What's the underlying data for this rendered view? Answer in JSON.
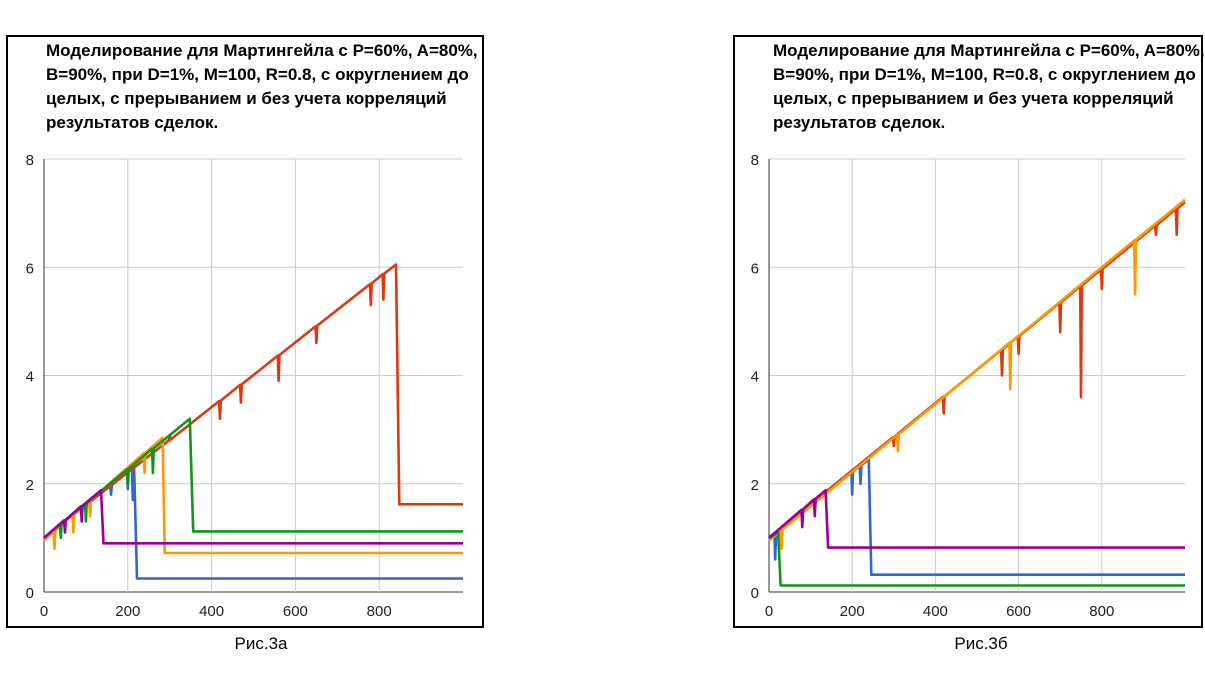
{
  "chart_data": [
    {
      "type": "line",
      "title": "Моделирование для Мартингейла с P=60%, A=80%, B=90%, при D=1%, M=100, R=0.8, с округлением до целых, с прерыванием и без учета корреляций результатов сделок.",
      "caption": "Рис.3а",
      "xlim": [
        0,
        1000
      ],
      "ylim": [
        0,
        8
      ],
      "x_ticks": [
        "0",
        "200",
        "400",
        "600",
        "800"
      ],
      "y_ticks": [
        "0",
        "2",
        "4",
        "6",
        "8"
      ],
      "grid": true,
      "series": [
        {
          "color": "#3366cc",
          "x": [
            0,
            215,
            222,
            1000
          ],
          "y": [
            1.0,
            2.3,
            0.25,
            0.25
          ],
          "drops": [
            [
              160,
              1.8
            ],
            [
              200,
              1.9
            ],
            [
              212,
              1.7
            ]
          ]
        },
        {
          "color": "#dc3912",
          "x": [
            0,
            840,
            848,
            1000
          ],
          "y": [
            1.0,
            6.05,
            1.62,
            1.62
          ],
          "drops": [
            [
              300,
              2.9
            ],
            [
              420,
              3.2
            ],
            [
              470,
              3.5
            ],
            [
              560,
              3.9
            ],
            [
              650,
              4.6
            ],
            [
              780,
              5.3
            ],
            [
              810,
              5.4
            ]
          ]
        },
        {
          "color": "#ff9900",
          "x": [
            0,
            283,
            288,
            1000
          ],
          "y": [
            0.95,
            2.85,
            0.72,
            0.72
          ],
          "drops": [
            [
              25,
              0.8
            ],
            [
              70,
              1.1
            ],
            [
              110,
              1.4
            ],
            [
              240,
              2.2
            ]
          ]
        },
        {
          "color": "#109618",
          "x": [
            0,
            348,
            356,
            1000
          ],
          "y": [
            1.0,
            3.2,
            1.12,
            1.12
          ],
          "drops": [
            [
              40,
              1.0
            ],
            [
              100,
              1.3
            ],
            [
              200,
              2.0
            ],
            [
              260,
              2.2
            ]
          ]
        },
        {
          "color": "#990099",
          "x": [
            0,
            136,
            142,
            1000
          ],
          "y": [
            1.0,
            1.88,
            0.9,
            0.9
          ],
          "drops": [
            [
              50,
              1.1
            ],
            [
              90,
              1.3
            ]
          ]
        }
      ]
    },
    {
      "type": "line",
      "title": "Моделирование для Мартингейла с P=60%, A=80%, B=90%, при D=1%, M=100, R=0.8, с округлением до целых, с прерыванием и без учета корреляций результатов сделок.",
      "caption": "Рис.3б",
      "xlim": [
        0,
        1000
      ],
      "ylim": [
        0,
        8
      ],
      "x_ticks": [
        "0",
        "200",
        "400",
        "600",
        "800"
      ],
      "y_ticks": [
        "0",
        "2",
        "4",
        "6",
        "8"
      ],
      "grid": true,
      "series": [
        {
          "color": "#3366cc",
          "x": [
            0,
            240,
            246,
            1000
          ],
          "y": [
            1.0,
            2.45,
            0.32,
            0.32
          ],
          "drops": [
            [
              15,
              0.6
            ],
            [
              200,
              1.8
            ],
            [
              220,
              2.0
            ]
          ]
        },
        {
          "color": "#dc3912",
          "x": [
            0,
            1000
          ],
          "y": [
            1.0,
            7.2
          ],
          "drops": [
            [
              300,
              2.7
            ],
            [
              420,
              3.3
            ],
            [
              560,
              4.0
            ],
            [
              600,
              4.4
            ],
            [
              700,
              4.8
            ],
            [
              750,
              3.6
            ],
            [
              800,
              5.6
            ],
            [
              930,
              6.6
            ],
            [
              980,
              6.6
            ]
          ]
        },
        {
          "color": "#ff9900",
          "x": [
            0,
            1000
          ],
          "y": [
            0.95,
            7.25
          ],
          "drops": [
            [
              30,
              0.8
            ],
            [
              310,
              2.6
            ],
            [
              580,
              3.75
            ],
            [
              880,
              5.5
            ]
          ]
        },
        {
          "color": "#109618",
          "x": [
            0,
            22,
            28,
            1000
          ],
          "y": [
            1.0,
            1.1,
            0.12,
            0.12
          ],
          "drops": []
        },
        {
          "color": "#990099",
          "x": [
            0,
            136,
            142,
            1000
          ],
          "y": [
            1.0,
            1.88,
            0.82,
            0.82
          ],
          "drops": [
            [
              80,
              1.2
            ],
            [
              110,
              1.4
            ]
          ]
        }
      ]
    }
  ]
}
